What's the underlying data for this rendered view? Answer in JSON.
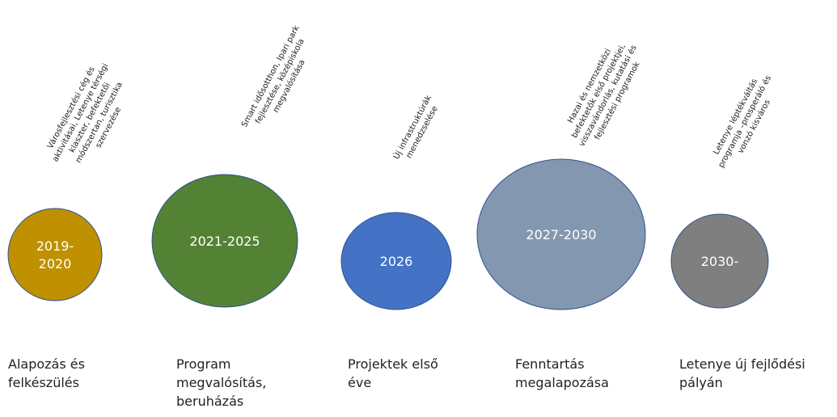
{
  "stages": [
    {
      "year": [
        "2019-",
        "2020"
      ],
      "note": [
        "Városfejlesztési cég és",
        "aktivitásai, Letenye térségi",
        "klaszter, befektetői",
        "módszertan, turisztika",
        "szervezése"
      ],
      "label": [
        "Alapozás és",
        "felkészülés"
      ]
    },
    {
      "year": [
        "2021-2025"
      ],
      "note": [
        "Smart idősotthon, Ipari park",
        "fejlesztése, középiskola",
        "megvalósítása"
      ],
      "label": [
        "Program",
        "megvalósítás,",
        "beruházás"
      ]
    },
    {
      "year": [
        "2026"
      ],
      "note": [
        "Új infrastruktúrák",
        "menedzselése"
      ],
      "label": [
        "Projektek első",
        "éve"
      ]
    },
    {
      "year": [
        "2027-2030"
      ],
      "note": [
        "Hazai és nemzetközi",
        "befektetők első projektjei,",
        "visszavándorlás, kutatási és",
        "fejlesztési programok"
      ],
      "label": [
        "Fenntartás",
        "megalapozása"
      ]
    },
    {
      "year": [
        "2030-"
      ],
      "note": [
        "Letenye léptékváltás",
        "programja –prosperáló és",
        "vonzó kisváros"
      ],
      "label": [
        "Letenye új fejlődési",
        "pályán"
      ]
    }
  ]
}
